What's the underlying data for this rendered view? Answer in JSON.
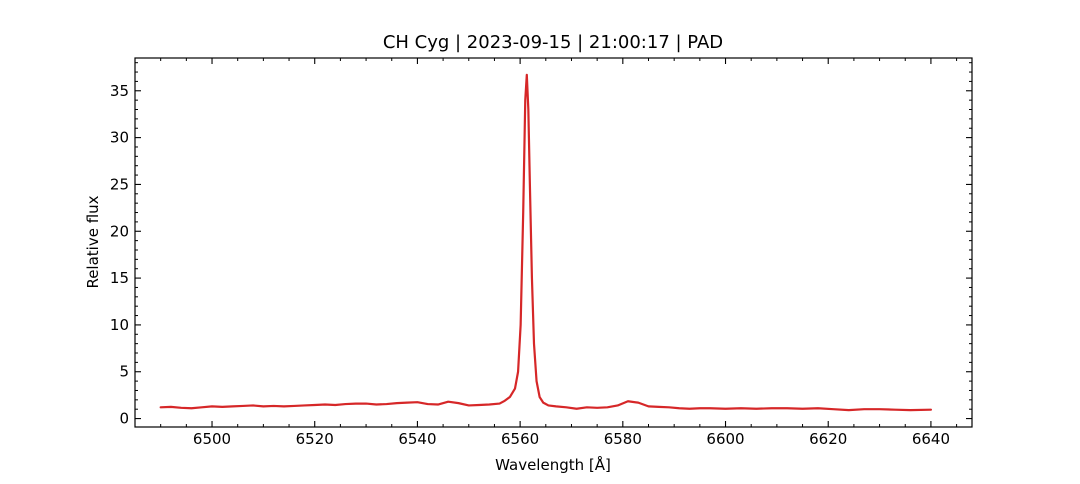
{
  "chart_data": {
    "type": "line",
    "title": "CH Cyg | 2023-09-15 | 21:00:17 | PAD",
    "xlabel": "Wavelength [Å]",
    "ylabel": "Relative flux",
    "xlim": [
      6485,
      6648
    ],
    "ylim": [
      -0.9,
      38.5
    ],
    "xticks": [
      6500,
      6520,
      6540,
      6560,
      6580,
      6600,
      6620,
      6640
    ],
    "yticks": [
      0,
      5,
      10,
      15,
      20,
      25,
      30,
      35
    ],
    "x_minor_step": 5,
    "y_minor_step": 1,
    "tick_direction": "in",
    "grid": false,
    "legend": "none",
    "series": [
      {
        "color": "#d62728",
        "x": [
          6490,
          6492,
          6494,
          6496,
          6498,
          6500,
          6502,
          6504,
          6506,
          6508,
          6510,
          6512,
          6514,
          6516,
          6518,
          6520,
          6522,
          6524,
          6526,
          6528,
          6530,
          6532,
          6534,
          6536,
          6538,
          6540,
          6542,
          6544,
          6546,
          6548,
          6550,
          6552,
          6554,
          6556,
          6557,
          6558,
          6559,
          6559.6,
          6560.1,
          6560.6,
          6561.0,
          6561.3,
          6561.6,
          6561.9,
          6562.3,
          6562.7,
          6563.2,
          6563.8,
          6564.5,
          6565.5,
          6567,
          6569,
          6571,
          6573,
          6575,
          6577,
          6579,
          6581,
          6583,
          6585,
          6587,
          6589,
          6591,
          6593,
          6595,
          6597,
          6600,
          6603,
          6606,
          6609,
          6612,
          6615,
          6618,
          6621,
          6624,
          6627,
          6630,
          6633,
          6636,
          6640
        ],
        "y": [
          1.2,
          1.25,
          1.15,
          1.1,
          1.2,
          1.3,
          1.25,
          1.3,
          1.35,
          1.4,
          1.3,
          1.35,
          1.3,
          1.35,
          1.4,
          1.45,
          1.5,
          1.45,
          1.55,
          1.6,
          1.6,
          1.5,
          1.55,
          1.65,
          1.7,
          1.75,
          1.55,
          1.5,
          1.8,
          1.65,
          1.4,
          1.45,
          1.5,
          1.6,
          1.9,
          2.3,
          3.2,
          5.0,
          10.0,
          22.0,
          34.0,
          36.7,
          33.0,
          25.0,
          15.0,
          8.0,
          4.0,
          2.3,
          1.7,
          1.4,
          1.3,
          1.2,
          1.05,
          1.2,
          1.15,
          1.2,
          1.4,
          1.85,
          1.7,
          1.3,
          1.25,
          1.2,
          1.1,
          1.05,
          1.1,
          1.1,
          1.05,
          1.1,
          1.05,
          1.1,
          1.1,
          1.05,
          1.1,
          1.0,
          0.9,
          1.0,
          1.0,
          0.95,
          0.9,
          0.95
        ]
      }
    ]
  }
}
